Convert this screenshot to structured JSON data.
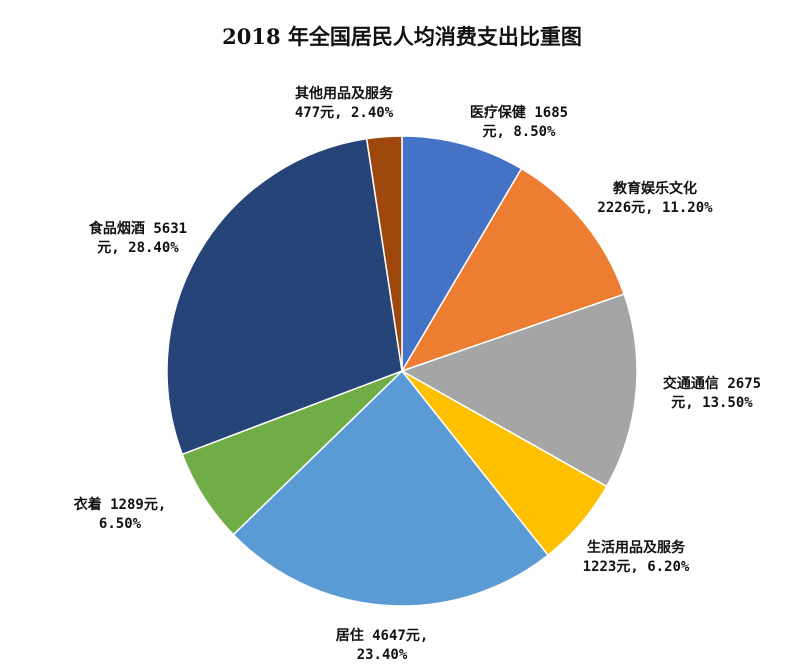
{
  "chart_data": {
    "type": "pie",
    "title": "2018 年全国居民人均消费支出比重图",
    "categories": [
      "医疗保健",
      "教育娱乐文化",
      "交通通信",
      "生活用品及服务",
      "居住",
      "衣着",
      "食品烟酒",
      "其他用品及服务"
    ],
    "values": [
      1685,
      2226,
      2675,
      1223,
      4647,
      1289,
      5631,
      477
    ],
    "percents": [
      8.5,
      11.2,
      13.5,
      6.2,
      23.4,
      6.5,
      28.4,
      2.4
    ],
    "colors": [
      "#4472C4",
      "#ED7D31",
      "#A5A5A5",
      "#FFC000",
      "#5B9BD5",
      "#70AD47",
      "#264478",
      "#9E480E"
    ],
    "labels": [
      [
        "医疗保健 1685",
        "元, 8.50%"
      ],
      [
        "教育娱乐文化",
        "2226元, 11.20%"
      ],
      [
        "交通通信 2675",
        "元, 13.50%"
      ],
      [
        "生活用品及服务",
        "1223元, 6.20%"
      ],
      [
        "居住 4647元,",
        "23.40%"
      ],
      [
        "衣着 1289元,",
        "6.50%"
      ],
      [
        "食品烟酒 5631",
        "元, 28.40%"
      ],
      [
        "其他用品及服务",
        "477元, 2.40%"
      ]
    ],
    "legend": "none"
  }
}
